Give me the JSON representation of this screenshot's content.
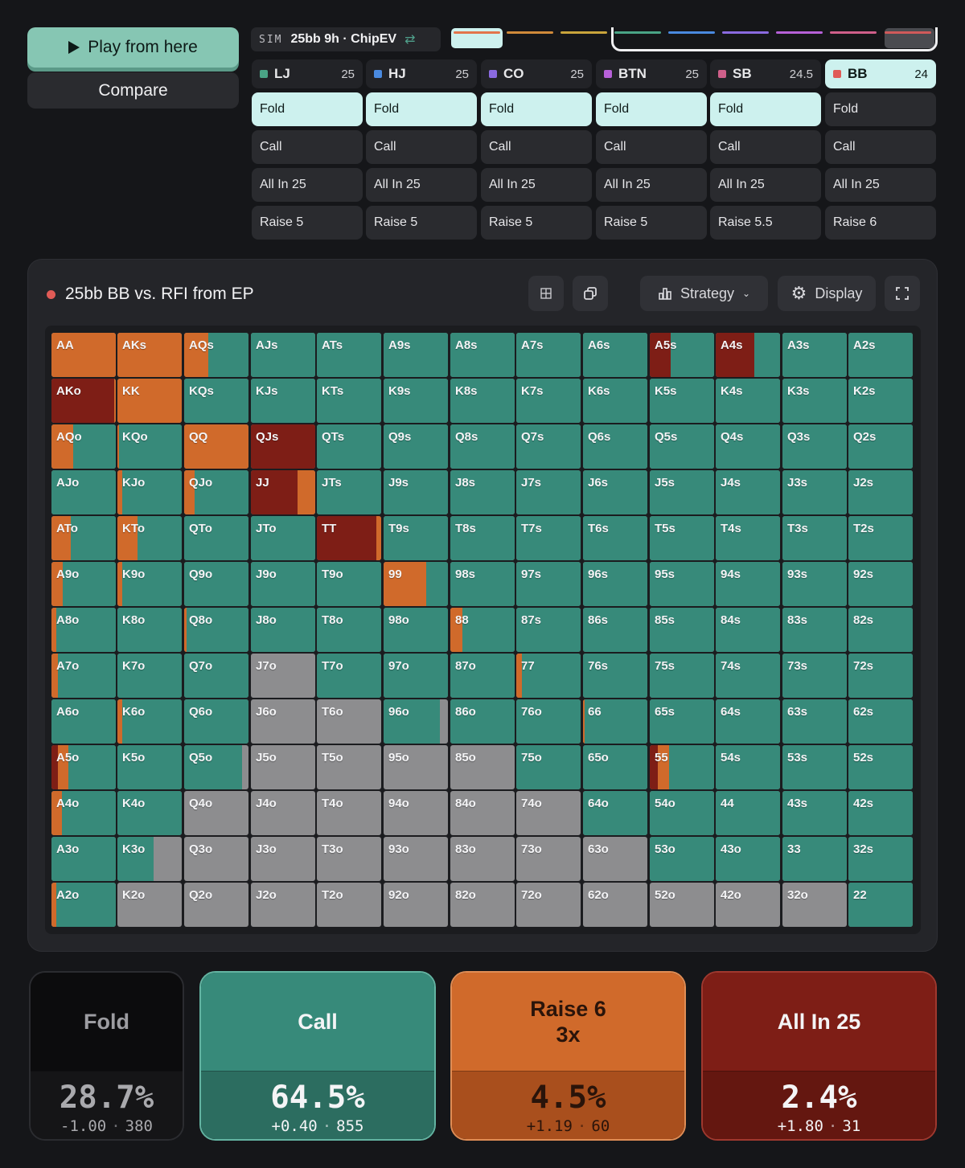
{
  "left": {
    "play_label": "Play from here",
    "compare_label": "Compare"
  },
  "sim": {
    "tag": "SIM",
    "name": "25bb 9h · ChipEV",
    "swap_icon": "swap-arrows-icon"
  },
  "nav_colors": [
    "#e2744a",
    "#d08a3a",
    "#c9a43b",
    "#4aa486",
    "#4a8ae0",
    "#8a6ae0",
    "#b660d8",
    "#cf5f8a",
    "#d05a5a"
  ],
  "positions": [
    {
      "name": "LJ",
      "stack": "25",
      "color": "#4aa486",
      "actions": [
        "Fold",
        "Call",
        "All In 25",
        "Raise 5"
      ],
      "selected": 0,
      "active": false
    },
    {
      "name": "HJ",
      "stack": "25",
      "color": "#4a8ae0",
      "actions": [
        "Fold",
        "Call",
        "All In 25",
        "Raise 5"
      ],
      "selected": 0,
      "active": false
    },
    {
      "name": "CO",
      "stack": "25",
      "color": "#8a6ae0",
      "actions": [
        "Fold",
        "Call",
        "All In 25",
        "Raise 5"
      ],
      "selected": 0,
      "active": false
    },
    {
      "name": "BTN",
      "stack": "25",
      "color": "#b660d8",
      "actions": [
        "Fold",
        "Call",
        "All In 25",
        "Raise 5"
      ],
      "selected": 0,
      "active": false
    },
    {
      "name": "SB",
      "stack": "24.5",
      "color": "#cf5f8a",
      "actions": [
        "Fold",
        "Call",
        "All In 25",
        "Raise 5.5"
      ],
      "selected": 0,
      "active": false
    },
    {
      "name": "BB",
      "stack": "24",
      "color": "#e05b56",
      "actions": [
        "Fold",
        "Call",
        "All In 25",
        "Raise 6"
      ],
      "selected": -1,
      "active": true
    }
  ],
  "panel": {
    "title": "25bb BB vs. RFI from EP",
    "strategy_label": "Strategy",
    "display_label": "Display"
  },
  "colors": {
    "fold": "#8d8d8f",
    "call": "#378a7a",
    "raise": "#d06a2b",
    "allin": "#7e1e16"
  },
  "ranks": [
    "A",
    "K",
    "Q",
    "J",
    "T",
    "9",
    "8",
    "7",
    "6",
    "5",
    "4",
    "3",
    "2"
  ],
  "grid": [
    [
      [
        0,
        0,
        0,
        1
      ],
      [
        0,
        0,
        0,
        1
      ],
      [
        0,
        0.62,
        0.38,
        0
      ],
      [
        0,
        1,
        0,
        0
      ],
      [
        0,
        1,
        0,
        0
      ],
      [
        0,
        1,
        0,
        0
      ],
      [
        0,
        1,
        0,
        0
      ],
      [
        0,
        1,
        0,
        0
      ],
      [
        0,
        1,
        0,
        0
      ],
      [
        0.32,
        0.68,
        0,
        0
      ],
      [
        0.6,
        0.4,
        0,
        0
      ],
      [
        0,
        1,
        0,
        0
      ],
      [
        0,
        1,
        0,
        0
      ]
    ],
    [
      [
        0.97,
        0,
        0,
        0.03
      ],
      [
        0,
        0,
        0,
        1
      ],
      [
        0,
        1,
        0,
        0
      ],
      [
        0,
        1,
        0,
        0
      ],
      [
        0,
        1,
        0,
        0
      ],
      [
        0,
        1,
        0,
        0
      ],
      [
        0,
        1,
        0,
        0
      ],
      [
        0,
        1,
        0,
        0
      ],
      [
        0,
        1,
        0,
        0
      ],
      [
        0,
        1,
        0,
        0
      ],
      [
        0,
        1,
        0,
        0
      ],
      [
        0,
        1,
        0,
        0
      ],
      [
        0,
        1,
        0,
        0
      ]
    ],
    [
      [
        0,
        0.66,
        0.34,
        0
      ],
      [
        0,
        0.97,
        0.03,
        0
      ],
      [
        0,
        0,
        0,
        1
      ],
      [
        1,
        0,
        0,
        0
      ],
      [
        0,
        1,
        0,
        0
      ],
      [
        0,
        1,
        0,
        0
      ],
      [
        0,
        1,
        0,
        0
      ],
      [
        0,
        1,
        0,
        0
      ],
      [
        0,
        1,
        0,
        0
      ],
      [
        0,
        1,
        0,
        0
      ],
      [
        0,
        1,
        0,
        0
      ],
      [
        0,
        1,
        0,
        0
      ],
      [
        0,
        1,
        0,
        0
      ]
    ],
    [
      [
        0,
        1,
        0,
        0
      ],
      [
        0,
        0.93,
        0.07,
        0
      ],
      [
        0,
        0.84,
        0.16,
        0
      ],
      [
        0.72,
        0,
        0,
        0.28
      ],
      [
        0,
        1,
        0,
        0
      ],
      [
        0,
        1,
        0,
        0
      ],
      [
        0,
        1,
        0,
        0
      ],
      [
        0,
        1,
        0,
        0
      ],
      [
        0,
        1,
        0,
        0
      ],
      [
        0,
        1,
        0,
        0
      ],
      [
        0,
        1,
        0,
        0
      ],
      [
        0,
        1,
        0,
        0
      ],
      [
        0,
        1,
        0,
        0
      ]
    ],
    [
      [
        0,
        0.7,
        0.3,
        0
      ],
      [
        0,
        0.69,
        0.31,
        0
      ],
      [
        0,
        1,
        0,
        0
      ],
      [
        0,
        1,
        0,
        0
      ],
      [
        0.92,
        0,
        0,
        0.08
      ],
      [
        0,
        1,
        0,
        0
      ],
      [
        0,
        1,
        0,
        0
      ],
      [
        0,
        1,
        0,
        0
      ],
      [
        0,
        1,
        0,
        0
      ],
      [
        0,
        1,
        0,
        0
      ],
      [
        0,
        1,
        0,
        0
      ],
      [
        0,
        1,
        0,
        0
      ],
      [
        0,
        1,
        0,
        0
      ]
    ],
    [
      [
        0,
        0.82,
        0.18,
        0
      ],
      [
        0,
        0.93,
        0.07,
        0
      ],
      [
        0,
        1,
        0,
        0
      ],
      [
        0,
        1,
        0,
        0
      ],
      [
        0,
        1,
        0,
        0
      ],
      [
        0,
        0.34,
        0.66,
        0
      ],
      [
        0,
        1,
        0,
        0
      ],
      [
        0,
        1,
        0,
        0
      ],
      [
        0,
        1,
        0,
        0
      ],
      [
        0,
        1,
        0,
        0
      ],
      [
        0,
        1,
        0,
        0
      ],
      [
        0,
        1,
        0,
        0
      ],
      [
        0,
        1,
        0,
        0
      ]
    ],
    [
      [
        0,
        0.92,
        0.08,
        0
      ],
      [
        0,
        1,
        0,
        0
      ],
      [
        0,
        0.96,
        0.04,
        0
      ],
      [
        0,
        1,
        0,
        0
      ],
      [
        0,
        1,
        0,
        0
      ],
      [
        0,
        1,
        0,
        0
      ],
      [
        0,
        0.81,
        0.19,
        0
      ],
      [
        0,
        1,
        0,
        0
      ],
      [
        0,
        1,
        0,
        0
      ],
      [
        0,
        1,
        0,
        0
      ],
      [
        0,
        1,
        0,
        0
      ],
      [
        0,
        1,
        0,
        0
      ],
      [
        0,
        1,
        0,
        0
      ]
    ],
    [
      [
        0,
        0.9,
        0.1,
        0
      ],
      [
        0,
        1,
        0,
        0
      ],
      [
        0,
        1,
        0,
        0
      ],
      [
        0,
        0,
        0,
        0
      ],
      [
        0,
        1,
        0,
        0
      ],
      [
        0,
        1,
        0,
        0
      ],
      [
        0,
        1,
        0,
        0
      ],
      [
        0,
        0.91,
        0.09,
        0
      ],
      [
        0,
        1,
        0,
        0
      ],
      [
        0,
        1,
        0,
        0
      ],
      [
        0,
        1,
        0,
        0
      ],
      [
        0,
        1,
        0,
        0
      ],
      [
        0,
        1,
        0,
        0
      ]
    ],
    [
      [
        0,
        1,
        0,
        0
      ],
      [
        0,
        0.93,
        0.07,
        0
      ],
      [
        0,
        1,
        0,
        0
      ],
      [
        0,
        0,
        0,
        0
      ],
      [
        0,
        0,
        0,
        0
      ],
      [
        0,
        0.88,
        0,
        0
      ],
      [
        0,
        1,
        0,
        0
      ],
      [
        0,
        1,
        0,
        0
      ],
      [
        0,
        0.97,
        0.03,
        0
      ],
      [
        0,
        1,
        0,
        0
      ],
      [
        0,
        1,
        0,
        0
      ],
      [
        0,
        1,
        0,
        0
      ],
      [
        0,
        1,
        0,
        0
      ]
    ],
    [
      [
        0.1,
        0.74,
        0.16,
        0
      ],
      [
        0,
        1,
        0,
        0
      ],
      [
        0,
        0.9,
        0,
        0
      ],
      [
        0,
        0,
        0,
        0
      ],
      [
        0,
        0,
        0,
        0
      ],
      [
        0,
        0,
        0,
        0
      ],
      [
        0,
        0,
        0,
        0
      ],
      [
        0,
        1,
        0,
        0
      ],
      [
        0,
        1,
        0,
        0
      ],
      [
        0,
        0.3,
        0.16,
        0.1
      ],
      [
        0,
        1,
        0,
        0
      ],
      [
        0,
        1,
        0,
        0
      ],
      [
        0,
        1,
        0,
        0
      ]
    ],
    [
      [
        0,
        0.84,
        0.16,
        0
      ],
      [
        0,
        1,
        0,
        0
      ],
      [
        0,
        0,
        0,
        0
      ],
      [
        0,
        0,
        0,
        0
      ],
      [
        0,
        0,
        0,
        0
      ],
      [
        0,
        0,
        0,
        0
      ],
      [
        0,
        0,
        0,
        0
      ],
      [
        0,
        0,
        0,
        0
      ],
      [
        0,
        1,
        0,
        0
      ],
      [
        0,
        1,
        0,
        0
      ],
      [
        0,
        1,
        0,
        0
      ],
      [
        0,
        1,
        0,
        0
      ],
      [
        0,
        1,
        0,
        0
      ]
    ],
    [
      [
        0,
        1,
        0,
        0
      ],
      [
        0,
        0.56,
        0,
        0
      ],
      [
        0,
        0,
        0,
        0
      ],
      [
        0,
        0,
        0,
        0
      ],
      [
        0,
        0,
        0,
        0
      ],
      [
        0,
        0,
        0,
        0
      ],
      [
        0,
        0,
        0,
        0
      ],
      [
        0,
        0,
        0,
        0
      ],
      [
        0,
        0,
        0,
        0
      ],
      [
        0,
        1,
        0,
        0
      ],
      [
        0,
        1,
        0,
        0
      ],
      [
        0,
        1,
        0,
        0
      ],
      [
        0,
        1,
        0,
        0
      ]
    ],
    [
      [
        0,
        0.92,
        0.08,
        0
      ],
      [
        0,
        0,
        0,
        0
      ],
      [
        0,
        0,
        0,
        0
      ],
      [
        0,
        0,
        0,
        0
      ],
      [
        0,
        0,
        0,
        0
      ],
      [
        0,
        0,
        0,
        0
      ],
      [
        0,
        0,
        0,
        0
      ],
      [
        0,
        0,
        0,
        0
      ],
      [
        0,
        0,
        0,
        0
      ],
      [
        0,
        0,
        0,
        0
      ],
      [
        0,
        0,
        0,
        0
      ],
      [
        0,
        0,
        0,
        0
      ],
      [
        0,
        1,
        0,
        0
      ]
    ]
  ],
  "summary": [
    {
      "key": "fold",
      "title": "Fold",
      "title2": "",
      "pct": "28.7%",
      "ev": "-1.00",
      "combos": "380"
    },
    {
      "key": "call",
      "title": "Call",
      "title2": "",
      "pct": "64.5%",
      "ev": "+0.40",
      "combos": "855"
    },
    {
      "key": "raise",
      "title": "Raise 6",
      "title2": "3x",
      "pct": "4.5%",
      "ev": "+1.19",
      "combos": "60"
    },
    {
      "key": "allin",
      "title": "All In 25",
      "title2": "",
      "pct": "2.4%",
      "ev": "+1.80",
      "combos": "31"
    }
  ]
}
